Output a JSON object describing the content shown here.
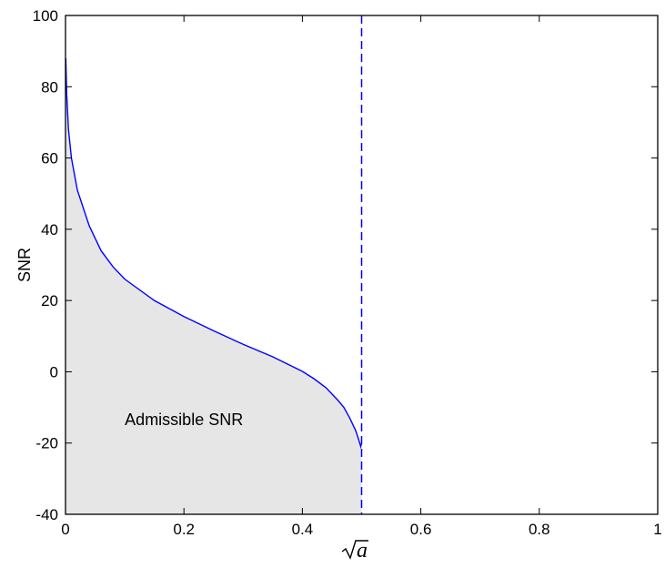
{
  "chart_data": {
    "type": "area",
    "xlabel": "a",
    "xlabel_display": "sqrt",
    "ylabel": "SNR",
    "xlim": [
      0,
      1
    ],
    "ylim": [
      -40,
      100
    ],
    "xticks": [
      "0",
      "0.2",
      "0.4",
      "0.6",
      "0.8",
      "1"
    ],
    "yticks": [
      "-40",
      "-20",
      "0",
      "20",
      "40",
      "60",
      "80",
      "100"
    ],
    "grid": false,
    "series": [
      {
        "style": "solid",
        "color": "#0000ff",
        "fill": "#e6e6e6",
        "x": [
          0.0005,
          0.002,
          0.005,
          0.01,
          0.02,
          0.04,
          0.06,
          0.08,
          0.1,
          0.15,
          0.2,
          0.25,
          0.3,
          0.35,
          0.4,
          0.42,
          0.44,
          0.46,
          0.47,
          0.48,
          0.49,
          0.495,
          0.4985,
          0.5
        ],
        "y": [
          88,
          78,
          68,
          60,
          51,
          41,
          34,
          29.5,
          26,
          20,
          15.5,
          11.5,
          7.7,
          4.2,
          0.1,
          -2,
          -4.5,
          -8,
          -10,
          -13,
          -16.5,
          -19,
          -21,
          -20
        ]
      }
    ],
    "reference_lines": [
      {
        "orientation": "vertical",
        "x": 0.5,
        "style": "dashed",
        "color": "#0000ff"
      }
    ],
    "annotations": [
      {
        "text": "Admissible SNR",
        "x": 0.2,
        "y": -15
      }
    ]
  }
}
